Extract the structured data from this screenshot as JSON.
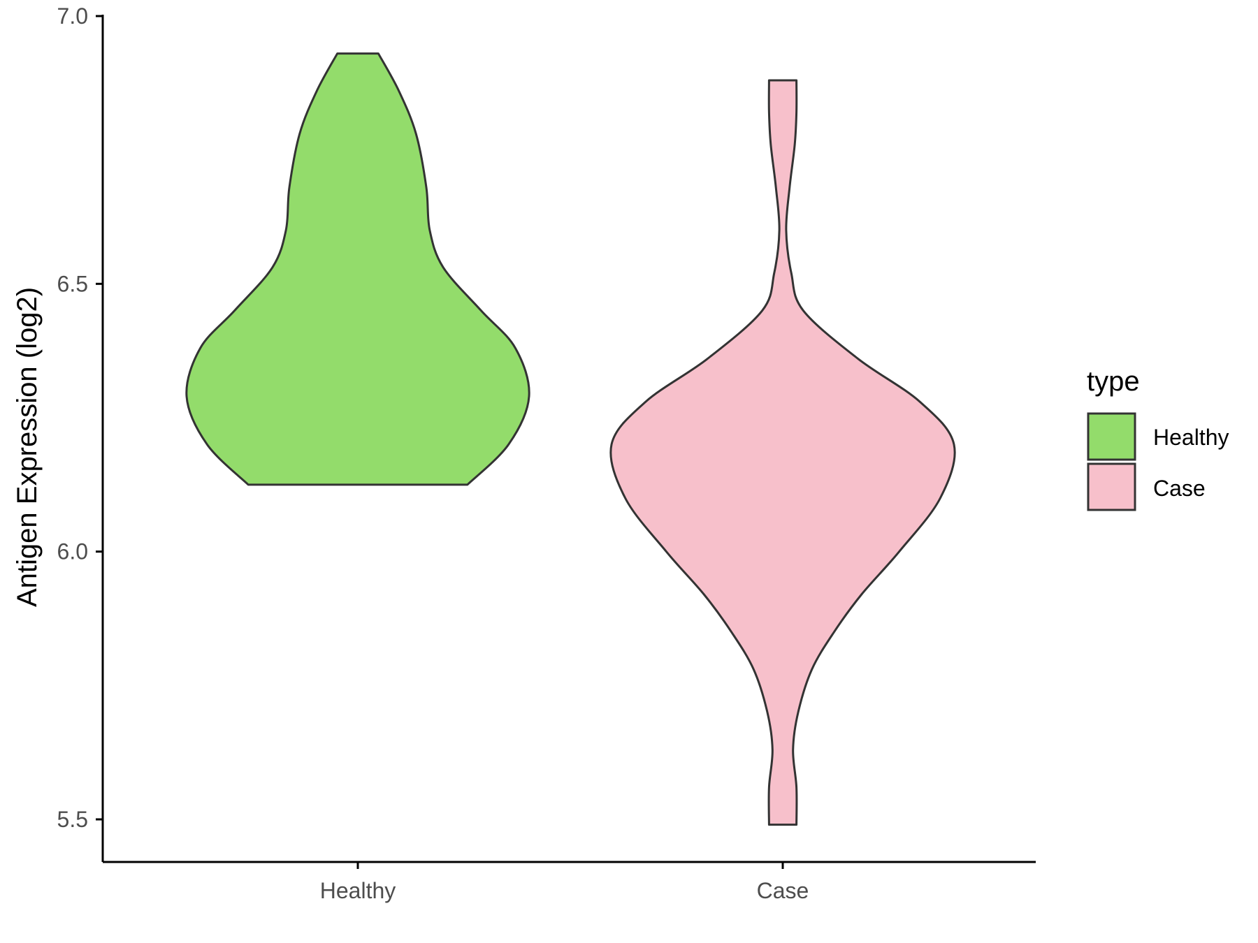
{
  "chart_data": {
    "type": "violin",
    "title": "",
    "xlabel": "",
    "ylabel": "Antigen Expression (log2)",
    "ylim": [
      5.42,
      7.0
    ],
    "yticks": [
      "5.5",
      "6.0",
      "6.5",
      "7.0"
    ],
    "ytick_values": [
      5.5,
      6.0,
      6.5,
      7.0
    ],
    "categories": [
      "Healthy",
      "Case"
    ],
    "grid": false,
    "legend": {
      "title": "type",
      "position": "right",
      "entries": [
        "Healthy",
        "Case"
      ]
    },
    "series": [
      {
        "name": "Healthy",
        "color": "#93dc6b",
        "ymin": 6.125,
        "ymax": 6.93,
        "density": [
          [
            6.125,
            0.64
          ],
          [
            6.2,
            0.88
          ],
          [
            6.29,
            1.0
          ],
          [
            6.38,
            0.92
          ],
          [
            6.45,
            0.72
          ],
          [
            6.53,
            0.5
          ],
          [
            6.6,
            0.42
          ],
          [
            6.68,
            0.4
          ],
          [
            6.78,
            0.34
          ],
          [
            6.86,
            0.24
          ],
          [
            6.93,
            0.12
          ]
        ]
      },
      {
        "name": "Case",
        "color": "#f7c0cb",
        "ymin": 5.49,
        "ymax": 6.88,
        "density": [
          [
            5.49,
            0.08
          ],
          [
            5.56,
            0.08
          ],
          [
            5.63,
            0.06
          ],
          [
            5.7,
            0.09
          ],
          [
            5.78,
            0.17
          ],
          [
            5.85,
            0.3
          ],
          [
            5.92,
            0.46
          ],
          [
            6.0,
            0.68
          ],
          [
            6.1,
            0.92
          ],
          [
            6.2,
            1.0
          ],
          [
            6.28,
            0.8
          ],
          [
            6.36,
            0.44
          ],
          [
            6.45,
            0.12
          ],
          [
            6.52,
            0.05
          ],
          [
            6.6,
            0.02
          ],
          [
            6.68,
            0.04
          ],
          [
            6.76,
            0.07
          ],
          [
            6.82,
            0.08
          ],
          [
            6.88,
            0.08
          ]
        ]
      }
    ]
  }
}
